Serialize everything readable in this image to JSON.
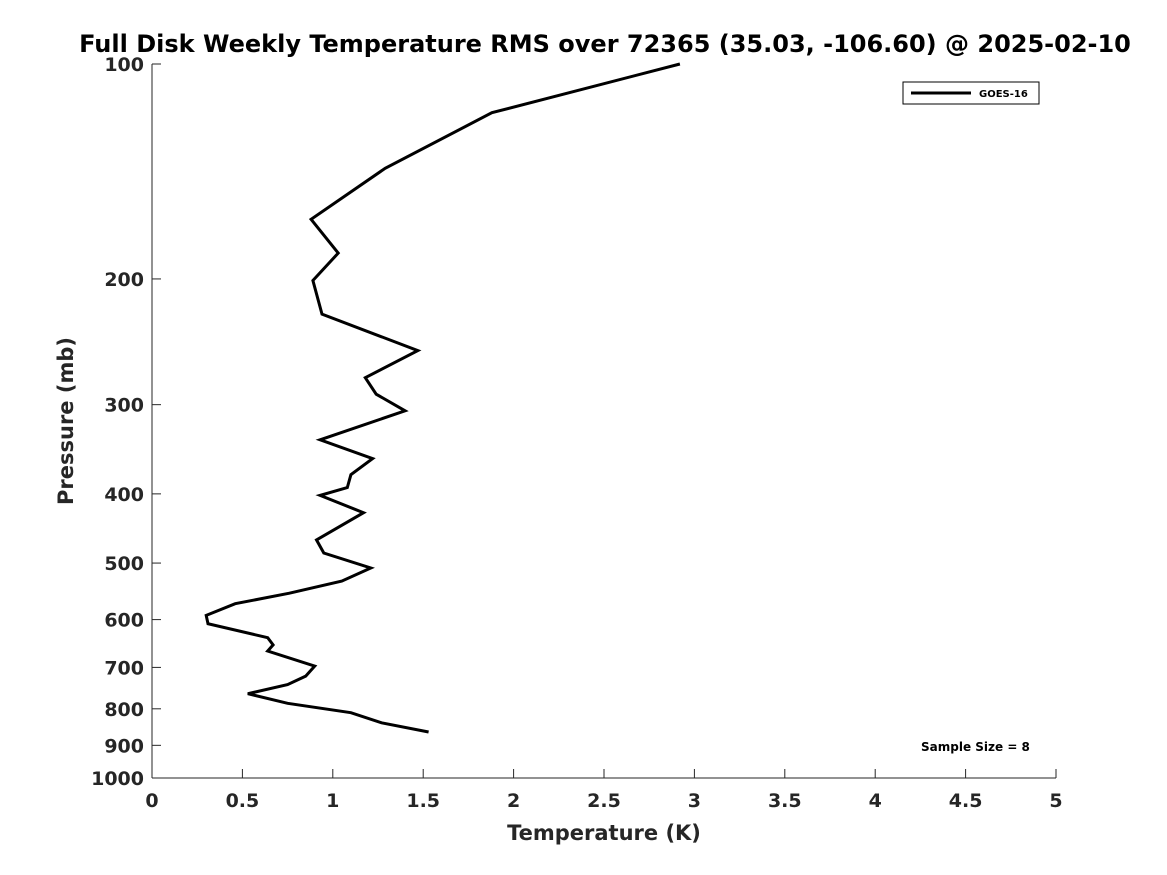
{
  "chart_data": {
    "type": "line",
    "title": "Full Disk Weekly Temperature RMS over 72365 (35.03, -106.60) @ 2025-02-10",
    "xlabel": "Temperature (K)",
    "ylabel": "Pressure (mb)",
    "xlim": [
      0,
      5
    ],
    "ylim": [
      1000,
      100
    ],
    "y_scale": "log",
    "y_reversed": true,
    "grid": false,
    "legend_position": "top-right",
    "x_ticks": [
      0,
      0.5,
      1,
      1.5,
      2,
      2.5,
      3,
      3.5,
      4,
      4.5,
      5
    ],
    "x_tick_labels": [
      "0",
      "0.5",
      "1",
      "1.5",
      "2",
      "2.5",
      "3",
      "3.5",
      "4",
      "4.5",
      "5"
    ],
    "y_ticks": [
      100,
      200,
      300,
      400,
      500,
      600,
      700,
      800,
      900,
      1000
    ],
    "y_tick_labels": [
      "100",
      "200",
      "300",
      "400",
      "500",
      "600",
      "700",
      "800",
      "900",
      "1000"
    ],
    "series": [
      {
        "name": "GOES-16",
        "color": "#000000",
        "x": [
          2.92,
          1.88,
          1.29,
          0.88,
          1.03,
          0.89,
          0.94,
          1.47,
          1.18,
          1.24,
          1.4,
          0.93,
          1.22,
          1.1,
          1.08,
          0.93,
          1.17,
          0.91,
          0.95,
          1.21,
          1.05,
          0.76,
          0.46,
          0.3,
          0.31,
          0.64,
          0.67,
          0.64,
          0.9,
          0.85,
          0.75,
          0.53,
          0.75,
          1.1,
          1.27,
          1.53
        ],
        "y": [
          100,
          117,
          140,
          165,
          184,
          201,
          224,
          252,
          275,
          290,
          306,
          336,
          357,
          376,
          392,
          402,
          425,
          464,
          484,
          508,
          530,
          551,
          570,
          592,
          608,
          636,
          651,
          664,
          697,
          720,
          740,
          762,
          786,
          810,
          837,
          862
        ]
      }
    ],
    "annotations": [
      {
        "text": "Sample Size = 8"
      }
    ]
  }
}
